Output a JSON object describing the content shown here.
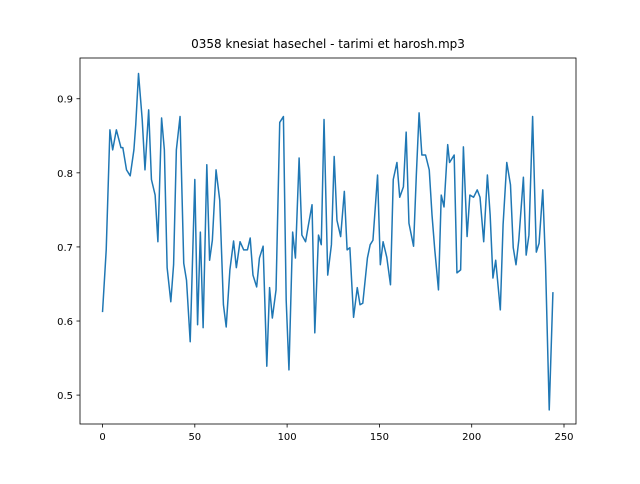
{
  "chart_data": {
    "type": "line",
    "title": "0358 knesiat hasechel - tarimi et harosh.mp3",
    "x": [
      0,
      2,
      4,
      5.5,
      7.5,
      10,
      11,
      13,
      15,
      17,
      18,
      19.5,
      21.5,
      23,
      25,
      26.5,
      28.5,
      30,
      32,
      33.5,
      35,
      37,
      38.5,
      40,
      42,
      44,
      45.5,
      47.5,
      50,
      51.5,
      53,
      54.5,
      56.5,
      58,
      59.5,
      61.5,
      63.5,
      65.5,
      67,
      69,
      71,
      72.5,
      74.5,
      76.5,
      78.5,
      80,
      81.5,
      83.5,
      85,
      87,
      89,
      90.5,
      92,
      94,
      96,
      98,
      99.5,
      101,
      103,
      104.5,
      106.5,
      108,
      110,
      111.5,
      113.5,
      115,
      117,
      118.5,
      120,
      122,
      124,
      125.5,
      127,
      129,
      131,
      132.5,
      134,
      136,
      138,
      139.5,
      141,
      143.5,
      145,
      146.5,
      149,
      150.5,
      152,
      154,
      156,
      157.5,
      159.5,
      161,
      163,
      164.5,
      166,
      168.5,
      170,
      171.5,
      173,
      175,
      177,
      178.5,
      180,
      182,
      183.5,
      185,
      187,
      188,
      190.5,
      192,
      194,
      195.5,
      197.5,
      199,
      201,
      203,
      204.5,
      206.5,
      208.5,
      210,
      211.5,
      213,
      215.5,
      217,
      219,
      221,
      222.5,
      224,
      225.5,
      228,
      229.5,
      231,
      233,
      235,
      236.5,
      238.5,
      240,
      242,
      244
    ],
    "series": [
      {
        "color": "#1f77b4",
        "values": [
          0.612,
          0.696,
          0.858,
          0.831,
          0.858,
          0.834,
          0.834,
          0.804,
          0.796,
          0.831,
          0.865,
          0.934,
          0.872,
          0.804,
          0.885,
          0.791,
          0.77,
          0.707,
          0.874,
          0.831,
          0.672,
          0.626,
          0.676,
          0.831,
          0.876,
          0.678,
          0.655,
          0.572,
          0.791,
          0.595,
          0.72,
          0.591,
          0.811,
          0.682,
          0.709,
          0.804,
          0.763,
          0.622,
          0.592,
          0.669,
          0.708,
          0.672,
          0.707,
          0.696,
          0.696,
          0.712,
          0.662,
          0.646,
          0.685,
          0.701,
          0.539,
          0.645,
          0.604,
          0.642,
          0.868,
          0.876,
          0.628,
          0.534,
          0.72,
          0.685,
          0.82,
          0.716,
          0.707,
          0.729,
          0.757,
          0.584,
          0.716,
          0.703,
          0.872,
          0.662,
          0.703,
          0.822,
          0.736,
          0.714,
          0.775,
          0.696,
          0.699,
          0.605,
          0.645,
          0.622,
          0.624,
          0.685,
          0.703,
          0.709,
          0.797,
          0.676,
          0.707,
          0.686,
          0.649,
          0.791,
          0.814,
          0.767,
          0.781,
          0.855,
          0.732,
          0.701,
          0.797,
          0.881,
          0.824,
          0.824,
          0.804,
          0.743,
          0.696,
          0.642,
          0.77,
          0.754,
          0.838,
          0.814,
          0.824,
          0.665,
          0.669,
          0.835,
          0.714,
          0.77,
          0.767,
          0.777,
          0.767,
          0.707,
          0.797,
          0.743,
          0.658,
          0.682,
          0.615,
          0.73,
          0.814,
          0.784,
          0.699,
          0.676,
          0.709,
          0.794,
          0.689,
          0.716,
          0.876,
          0.693,
          0.705,
          0.777,
          0.676,
          0.48,
          0.639
        ]
      }
    ],
    "xlim": [
      -12.2,
      256.5
    ],
    "ylim": [
      0.461,
      0.955
    ],
    "xticks": [
      0,
      50,
      100,
      150,
      200,
      250
    ],
    "yticks": [
      0.5,
      0.6,
      0.7,
      0.8,
      0.9
    ]
  }
}
